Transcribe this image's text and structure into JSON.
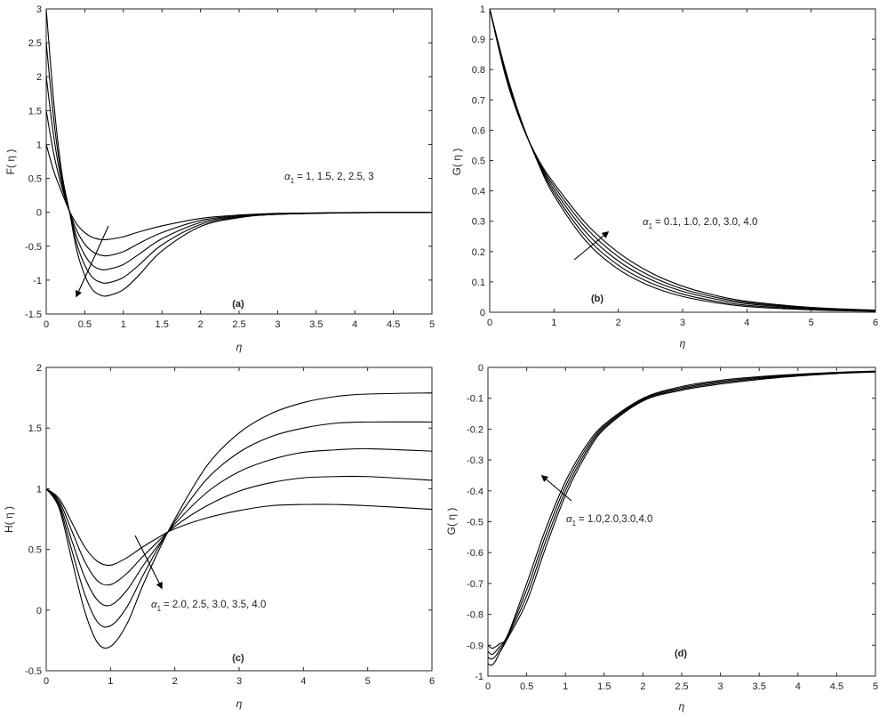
{
  "chart_data": [
    {
      "type": "line",
      "panel_tag": "(a)",
      "ylabel": "F( η )",
      "xlabel": "η",
      "xlim": [
        0,
        5
      ],
      "ylim": [
        -1.5,
        3
      ],
      "xticks": [
        0,
        0.5,
        1,
        1.5,
        2,
        2.5,
        3,
        3.5,
        4,
        4.5,
        5
      ],
      "yticks": [
        -1.5,
        -1,
        -0.5,
        0,
        0.5,
        1,
        1.5,
        2,
        2.5,
        3
      ],
      "grid": false,
      "annotation": {
        "prefix": "α",
        "sub": "1",
        "text": "= 1, 1.5, 2, 2.5, 3"
      },
      "series": [
        {
          "x": [
            0,
            0.1,
            0.2,
            0.3,
            0.4,
            0.5,
            0.6,
            0.7,
            0.8,
            1.0,
            1.2,
            1.5,
            2.0,
            2.5,
            3.0,
            4.0,
            5.0
          ],
          "values": [
            1.0,
            0.6,
            0.3,
            0.02,
            -0.18,
            -0.3,
            -0.37,
            -0.4,
            -0.4,
            -0.36,
            -0.29,
            -0.2,
            -0.09,
            -0.04,
            -0.015,
            -0.003,
            0
          ]
        },
        {
          "x": [
            0,
            0.1,
            0.2,
            0.3,
            0.4,
            0.5,
            0.6,
            0.7,
            0.8,
            1.0,
            1.2,
            1.5,
            2.0,
            2.5,
            3.0,
            4.0,
            5.0
          ],
          "values": [
            1.5,
            0.85,
            0.38,
            0.02,
            -0.28,
            -0.47,
            -0.58,
            -0.63,
            -0.64,
            -0.58,
            -0.46,
            -0.3,
            -0.12,
            -0.05,
            -0.02,
            -0.004,
            0
          ]
        },
        {
          "x": [
            0,
            0.1,
            0.2,
            0.3,
            0.4,
            0.5,
            0.6,
            0.7,
            0.8,
            1.0,
            1.2,
            1.5,
            2.0,
            2.5,
            3.0,
            4.0,
            5.0
          ],
          "values": [
            2.0,
            1.1,
            0.45,
            0.02,
            -0.38,
            -0.63,
            -0.78,
            -0.84,
            -0.84,
            -0.77,
            -0.62,
            -0.39,
            -0.15,
            -0.06,
            -0.025,
            -0.005,
            0
          ]
        },
        {
          "x": [
            0,
            0.1,
            0.2,
            0.3,
            0.4,
            0.5,
            0.6,
            0.7,
            0.8,
            1.0,
            1.2,
            1.5,
            2.0,
            2.5,
            3.0,
            4.0,
            5.0
          ],
          "values": [
            2.5,
            1.35,
            0.52,
            0.02,
            -0.48,
            -0.78,
            -0.96,
            -1.03,
            -1.04,
            -0.96,
            -0.78,
            -0.48,
            -0.18,
            -0.07,
            -0.03,
            -0.006,
            0
          ]
        },
        {
          "x": [
            0,
            0.1,
            0.2,
            0.3,
            0.4,
            0.5,
            0.6,
            0.7,
            0.8,
            1.0,
            1.2,
            1.5,
            2.0,
            2.5,
            3.0,
            4.0,
            5.0
          ],
          "values": [
            3.0,
            1.6,
            0.6,
            0.02,
            -0.58,
            -0.93,
            -1.14,
            -1.22,
            -1.23,
            -1.14,
            -0.93,
            -0.57,
            -0.21,
            -0.08,
            -0.03,
            -0.007,
            0
          ]
        }
      ]
    },
    {
      "type": "line",
      "panel_tag": "(b)",
      "ylabel": "G( η )",
      "xlabel": "η",
      "xlim": [
        0,
        6
      ],
      "ylim": [
        0,
        1
      ],
      "xticks": [
        0,
        1,
        2,
        3,
        4,
        5,
        6
      ],
      "yticks": [
        0,
        0.1,
        0.2,
        0.3,
        0.4,
        0.5,
        0.6,
        0.7,
        0.8,
        0.9,
        1
      ],
      "grid": false,
      "annotation": {
        "prefix": "α",
        "sub": "1",
        "text": "= 0.1, 1.0, 2.0, 3.0, 4.0"
      },
      "series": [
        {
          "x": [
            0,
            0.25,
            0.5,
            0.75,
            1.0,
            1.5,
            2.0,
            2.5,
            3.0,
            3.5,
            4.0,
            5.0,
            6.0
          ],
          "values": [
            1.0,
            0.795,
            0.627,
            0.493,
            0.385,
            0.234,
            0.142,
            0.086,
            0.052,
            0.032,
            0.019,
            0.008,
            0.003
          ]
        },
        {
          "x": [
            0,
            0.25,
            0.5,
            0.75,
            1.0,
            1.5,
            2.0,
            2.5,
            3.0,
            3.5,
            4.0,
            5.0,
            6.0
          ],
          "values": [
            1.0,
            0.79,
            0.625,
            0.497,
            0.395,
            0.248,
            0.155,
            0.097,
            0.06,
            0.037,
            0.023,
            0.01,
            0.004
          ]
        },
        {
          "x": [
            0,
            0.25,
            0.5,
            0.75,
            1.0,
            1.5,
            2.0,
            2.5,
            3.0,
            3.5,
            4.0,
            5.0,
            6.0
          ],
          "values": [
            1.0,
            0.785,
            0.622,
            0.5,
            0.405,
            0.263,
            0.169,
            0.108,
            0.069,
            0.044,
            0.028,
            0.012,
            0.005
          ]
        },
        {
          "x": [
            0,
            0.25,
            0.5,
            0.75,
            1.0,
            1.5,
            2.0,
            2.5,
            3.0,
            3.5,
            4.0,
            5.0,
            6.0
          ],
          "values": [
            1.0,
            0.78,
            0.62,
            0.503,
            0.415,
            0.278,
            0.183,
            0.119,
            0.077,
            0.05,
            0.032,
            0.014,
            0.006
          ]
        },
        {
          "x": [
            0,
            0.25,
            0.5,
            0.75,
            1.0,
            1.5,
            2.0,
            2.5,
            3.0,
            3.5,
            4.0,
            5.0,
            6.0
          ],
          "values": [
            1.0,
            0.775,
            0.618,
            0.506,
            0.425,
            0.292,
            0.197,
            0.131,
            0.086,
            0.056,
            0.036,
            0.016,
            0.007
          ]
        }
      ]
    },
    {
      "type": "line",
      "panel_tag": "(c)",
      "ylabel": "H( η )",
      "xlabel": "η",
      "xlim": [
        0,
        6
      ],
      "ylim": [
        -0.5,
        2
      ],
      "xticks": [
        0,
        1,
        2,
        3,
        4,
        5,
        6
      ],
      "yticks": [
        -0.5,
        0,
        0.5,
        1,
        1.5,
        2
      ],
      "grid": false,
      "annotation": {
        "prefix": "α",
        "sub": "1",
        "text": "= 2.0, 2.5, 3.0, 3.5, 4.0"
      },
      "series": [
        {
          "x": [
            0,
            0.2,
            0.4,
            0.6,
            0.8,
            1.0,
            1.25,
            1.5,
            1.75,
            2.0,
            2.5,
            3.0,
            3.5,
            4.0,
            4.5,
            5.0,
            6.0
          ],
          "values": [
            1.0,
            0.92,
            0.72,
            0.52,
            0.4,
            0.37,
            0.43,
            0.52,
            0.6,
            0.67,
            0.76,
            0.82,
            0.86,
            0.87,
            0.87,
            0.86,
            0.83
          ]
        },
        {
          "x": [
            0,
            0.2,
            0.4,
            0.6,
            0.8,
            1.0,
            1.25,
            1.5,
            1.75,
            2.0,
            2.5,
            3.0,
            3.5,
            4.0,
            4.5,
            5.0,
            6.0
          ],
          "values": [
            1.0,
            0.9,
            0.65,
            0.4,
            0.24,
            0.21,
            0.3,
            0.44,
            0.57,
            0.69,
            0.86,
            0.98,
            1.05,
            1.09,
            1.1,
            1.1,
            1.07
          ]
        },
        {
          "x": [
            0,
            0.2,
            0.4,
            0.6,
            0.8,
            1.0,
            1.25,
            1.5,
            1.75,
            2.0,
            2.5,
            3.0,
            3.5,
            4.0,
            4.5,
            5.0,
            6.0
          ],
          "values": [
            1.0,
            0.88,
            0.57,
            0.27,
            0.08,
            0.04,
            0.16,
            0.36,
            0.54,
            0.71,
            0.97,
            1.14,
            1.24,
            1.3,
            1.32,
            1.33,
            1.31
          ]
        },
        {
          "x": [
            0,
            0.2,
            0.4,
            0.6,
            0.8,
            1.0,
            1.25,
            1.5,
            1.75,
            2.0,
            2.5,
            3.0,
            3.5,
            4.0,
            4.5,
            5.0,
            6.0
          ],
          "values": [
            1.0,
            0.86,
            0.49,
            0.13,
            -0.1,
            -0.13,
            0.02,
            0.28,
            0.52,
            0.73,
            1.08,
            1.3,
            1.43,
            1.5,
            1.54,
            1.55,
            1.55
          ]
        },
        {
          "x": [
            0,
            0.2,
            0.4,
            0.6,
            0.8,
            1.0,
            1.25,
            1.5,
            1.75,
            2.0,
            2.5,
            3.0,
            3.5,
            4.0,
            4.5,
            5.0,
            6.0
          ],
          "values": [
            1.0,
            0.84,
            0.41,
            -0.01,
            -0.27,
            -0.3,
            -0.12,
            0.2,
            0.49,
            0.75,
            1.19,
            1.46,
            1.62,
            1.71,
            1.76,
            1.78,
            1.79
          ]
        }
      ]
    },
    {
      "type": "line",
      "panel_tag": "(d)",
      "ylabel": "G( η )",
      "xlabel": "η",
      "xlim": [
        0,
        5
      ],
      "ylim": [
        -1,
        0
      ],
      "xticks": [
        0,
        0.5,
        1,
        1.5,
        2,
        2.5,
        3,
        3.5,
        4,
        4.5,
        5
      ],
      "yticks": [
        -1,
        -0.9,
        -0.8,
        -0.7,
        -0.6,
        -0.5,
        -0.4,
        -0.3,
        -0.2,
        -0.1,
        0
      ],
      "grid": false,
      "annotation": {
        "prefix": "α",
        "sub": "1",
        "text": "= 1.0,2.0,3.0,4.0"
      },
      "series": [
        {
          "x": [
            0,
            0.05,
            0.1,
            0.15,
            0.25,
            0.5,
            0.75,
            1.0,
            1.25,
            1.5,
            2.0,
            2.5,
            3.0,
            3.5,
            4.0,
            4.5,
            5.0
          ],
          "values": [
            -0.9,
            -0.91,
            -0.905,
            -0.895,
            -0.87,
            -0.7,
            -0.52,
            -0.37,
            -0.26,
            -0.185,
            -0.1,
            -0.062,
            -0.042,
            -0.03,
            -0.022,
            -0.016,
            -0.012
          ]
        },
        {
          "x": [
            0,
            0.05,
            0.1,
            0.15,
            0.25,
            0.5,
            0.75,
            1.0,
            1.25,
            1.5,
            2.0,
            2.5,
            3.0,
            3.5,
            4.0,
            4.5,
            5.0
          ],
          "values": [
            -0.92,
            -0.93,
            -0.92,
            -0.905,
            -0.87,
            -0.72,
            -0.54,
            -0.385,
            -0.27,
            -0.19,
            -0.103,
            -0.066,
            -0.046,
            -0.033,
            -0.024,
            -0.018,
            -0.013
          ]
        },
        {
          "x": [
            0,
            0.05,
            0.1,
            0.15,
            0.25,
            0.5,
            0.75,
            1.0,
            1.25,
            1.5,
            2.0,
            2.5,
            3.0,
            3.5,
            4.0,
            4.5,
            5.0
          ],
          "values": [
            -0.94,
            -0.945,
            -0.935,
            -0.915,
            -0.875,
            -0.74,
            -0.56,
            -0.4,
            -0.28,
            -0.195,
            -0.106,
            -0.07,
            -0.05,
            -0.036,
            -0.026,
            -0.019,
            -0.014
          ]
        },
        {
          "x": [
            0,
            0.05,
            0.1,
            0.15,
            0.25,
            0.5,
            0.75,
            1.0,
            1.25,
            1.5,
            2.0,
            2.5,
            3.0,
            3.5,
            4.0,
            4.5,
            5.0
          ],
          "values": [
            -0.96,
            -0.965,
            -0.95,
            -0.925,
            -0.88,
            -0.76,
            -0.58,
            -0.415,
            -0.29,
            -0.2,
            -0.109,
            -0.074,
            -0.054,
            -0.039,
            -0.028,
            -0.02,
            -0.015
          ]
        }
      ]
    }
  ]
}
